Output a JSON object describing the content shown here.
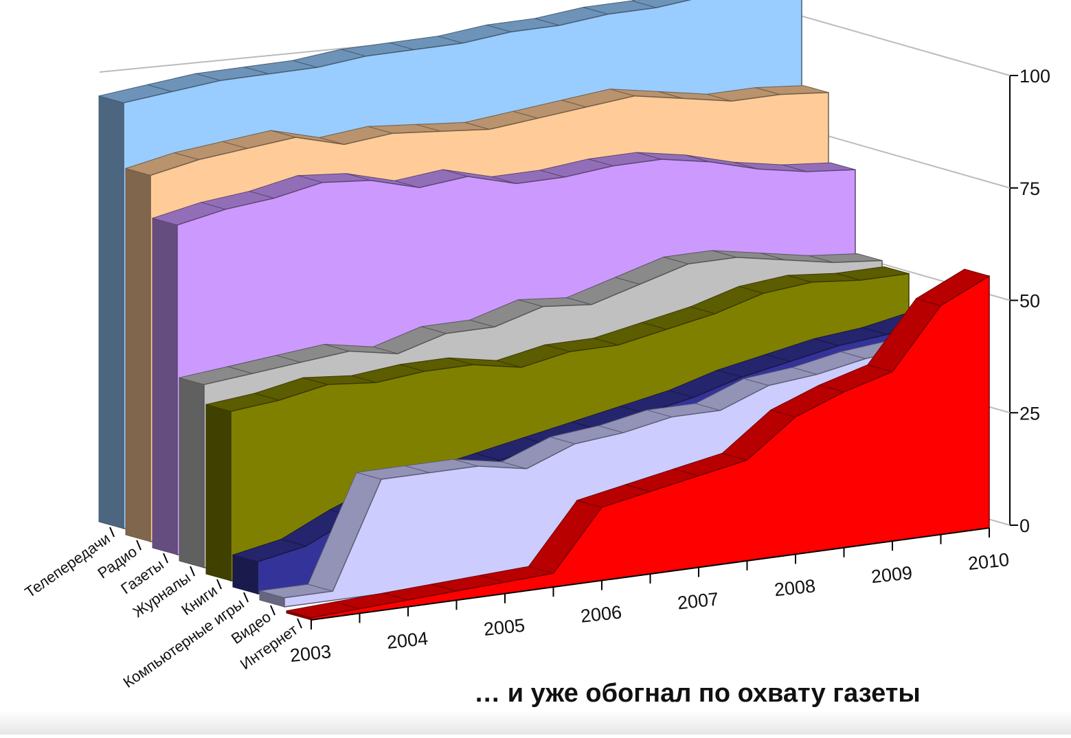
{
  "chart_data": {
    "type": "area3d",
    "categories": [
      "2003",
      null,
      "2004",
      null,
      "2005",
      null,
      "2006",
      null,
      "2007",
      null,
      "2008",
      null,
      "2009",
      null,
      "2010"
    ],
    "series": [
      {
        "name": "Телепередачи",
        "color": "#99ccff",
        "values": [
          93,
          94,
          95,
          95,
          95,
          96,
          96,
          96,
          97,
          97,
          98,
          98,
          99,
          98,
          99
        ]
      },
      {
        "name": "Радио",
        "color": "#ffcc99",
        "values": [
          80,
          82,
          83,
          84,
          81,
          82,
          81,
          80,
          81,
          82,
          83,
          81,
          79,
          79,
          78
        ]
      },
      {
        "name": "Газеты",
        "color": "#cc99ff",
        "values": [
          72,
          74,
          75,
          77,
          76,
          73,
          74,
          71,
          71,
          72,
          72,
          70,
          67,
          65,
          64
        ]
      },
      {
        "name": "Журналы",
        "color": "#c0c0c0",
        "values": [
          40,
          41,
          42,
          43,
          41,
          44,
          44,
          47,
          46,
          49,
          52,
          52,
          50,
          48,
          47
        ]
      },
      {
        "name": "Книги",
        "color": "#808000",
        "values": [
          37,
          38,
          40,
          39,
          40,
          40,
          38,
          40,
          40,
          42,
          44,
          47,
          48,
          47,
          47
        ]
      },
      {
        "name": "Компьютерные игры",
        "color": "#333399",
        "values": [
          7,
          9,
          14,
          18,
          20,
          22,
          24,
          26,
          28,
          30,
          33,
          35,
          37,
          38,
          40
        ]
      },
      {
        "name": "Видео",
        "color": "#ccccff",
        "values": [
          2,
          2,
          25,
          25,
          25,
          23,
          27,
          28,
          30,
          30,
          34,
          35,
          37,
          38,
          40
        ]
      },
      {
        "name": "Интернет",
        "color": "#ff0000",
        "values": [
          0.5,
          1,
          1.5,
          2,
          2.5,
          3,
          16,
          18,
          20,
          22,
          30,
          34,
          37,
          50,
          55
        ]
      }
    ],
    "ylim": [
      0,
      100
    ],
    "yticks": [
      0,
      25,
      50,
      75,
      100
    ],
    "annotation": "… и уже обогнал по охвату газеты"
  }
}
